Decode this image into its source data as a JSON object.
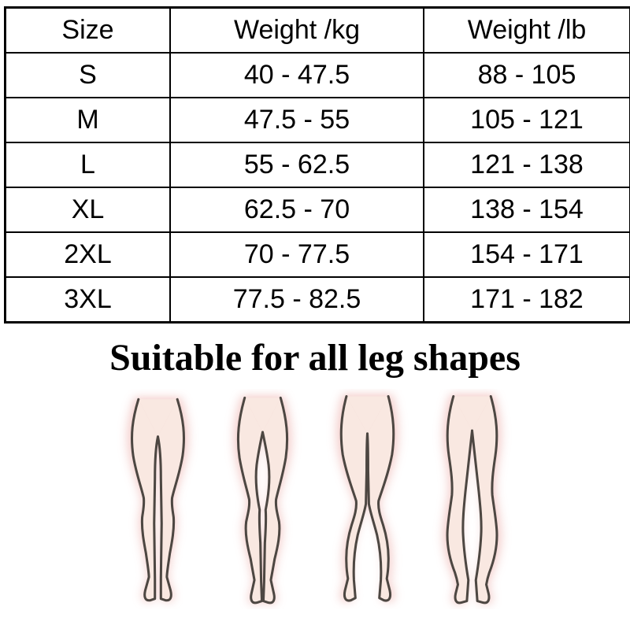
{
  "page": {
    "background": "#ffffff"
  },
  "size_table": {
    "columns": [
      "Size",
      "Weight /kg",
      "Weight /lb"
    ],
    "rows": [
      [
        "S",
        "40 - 47.5",
        "88 - 105"
      ],
      [
        "M",
        "47.5 - 55",
        "105 - 121"
      ],
      [
        "L",
        "55 - 62.5",
        "121 - 138"
      ],
      [
        "XL",
        "62.5 - 70",
        "138 - 154"
      ],
      [
        "2XL",
        "70 - 77.5",
        "154 - 171"
      ],
      [
        "3XL",
        "77.5 - 82.5",
        "171 - 182"
      ]
    ],
    "border_color": "#000000",
    "text_color": "#000000"
  },
  "section": {
    "title": "Suitable for all leg shapes"
  },
  "leg_shapes": {
    "figures": [
      {
        "name": "straight-legs"
      },
      {
        "name": "slim-legs-thigh-gap"
      },
      {
        "name": "knock-knees-x-shape"
      },
      {
        "name": "bow-legs-o-shape"
      }
    ],
    "colors": {
      "skin_fill": "#f9e8e1",
      "shadow_pink": "#f2c6c3",
      "outline": "#4d4742"
    }
  }
}
